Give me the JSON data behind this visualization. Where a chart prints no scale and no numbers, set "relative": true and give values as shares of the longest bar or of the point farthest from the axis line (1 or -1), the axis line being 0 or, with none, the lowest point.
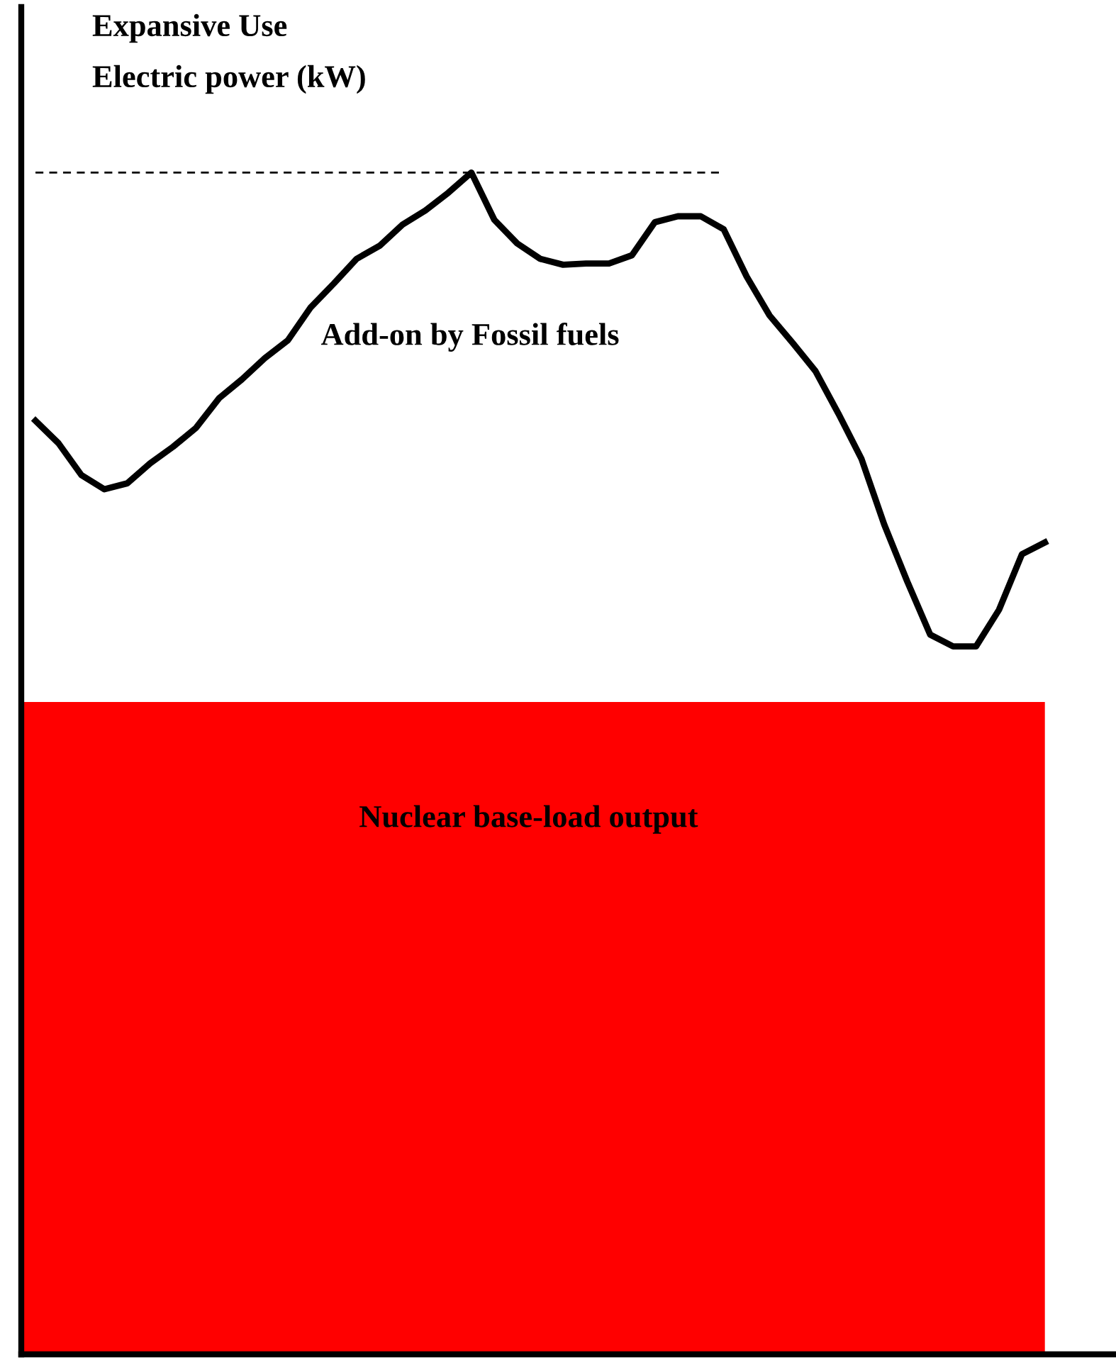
{
  "chart_data": {
    "type": "line",
    "relative": true,
    "title": "Expansive Use",
    "ylabel": "Electric power (kW)",
    "categories": [
      null,
      null,
      null,
      null,
      null,
      null,
      null,
      null,
      null,
      null,
      null,
      null,
      null,
      null,
      null,
      null,
      null,
      null,
      null,
      null,
      null,
      null,
      null,
      null,
      null,
      null,
      null,
      null,
      null,
      null,
      null,
      null,
      null,
      null,
      null,
      null,
      null,
      null,
      null,
      null,
      null,
      null,
      null,
      null,
      null
    ],
    "series": [
      {
        "color": "#000000",
        "line_style": "solid",
        "values": [
          0.79,
          0.771,
          0.744,
          0.732,
          0.737,
          0.754,
          0.768,
          0.784,
          0.809,
          0.825,
          0.843,
          0.858,
          0.886,
          0.906,
          0.927,
          0.938,
          0.956,
          0.968,
          0.983,
          1,
          0.96,
          0.94,
          0.927,
          0.922,
          0.923,
          0.923,
          0.93,
          0.958,
          0.963,
          0.963,
          0.952,
          0.912,
          0.879,
          0.856,
          0.832,
          0.796,
          0.758,
          0.702,
          0.654,
          0.609,
          0.599,
          0.599,
          0.63,
          0.677,
          0.687
        ]
      },
      {
        "color": "#000000",
        "line_style": "dashed",
        "values": [
          1,
          1,
          1,
          1,
          1,
          1,
          1,
          1,
          1,
          1,
          1,
          1,
          1,
          1,
          1,
          1,
          1,
          1,
          1,
          1,
          1,
          1,
          1,
          1,
          1,
          1,
          1,
          1,
          1,
          1,
          1,
          null,
          null,
          null,
          null,
          null,
          null,
          null,
          null,
          null,
          null,
          null,
          null,
          null,
          null
        ]
      }
    ],
    "bands": [
      {
        "axis": "y",
        "from": 0,
        "to": 0.552,
        "label": "Nuclear base-load output",
        "color": "#ff0000"
      }
    ],
    "annotations": [
      "Add-on by Fossil fuels"
    ],
    "grid": false,
    "legend": false,
    "marker": "none"
  }
}
